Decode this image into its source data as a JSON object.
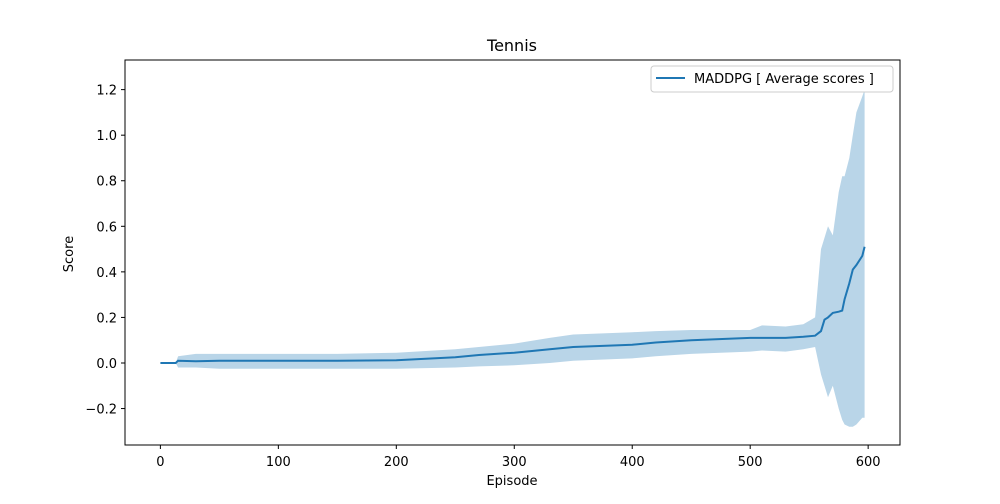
{
  "chart_data": {
    "type": "line",
    "title": "Tennis",
    "xlabel": "Episode",
    "ylabel": "Score",
    "xlim": [
      -30,
      627
    ],
    "ylim": [
      -0.36,
      1.33
    ],
    "xticks": [
      0,
      100,
      200,
      300,
      400,
      500,
      600
    ],
    "xtick_labels": [
      "0",
      "100",
      "200",
      "300",
      "400",
      "500",
      "600"
    ],
    "yticks": [
      -0.2,
      0.0,
      0.2,
      0.4,
      0.6,
      0.8,
      1.0,
      1.2
    ],
    "ytick_labels": [
      "−0.2",
      "0.0",
      "0.2",
      "0.4",
      "0.6",
      "0.8",
      "1.0",
      "1.2"
    ],
    "grid": false,
    "legend_position": "top-right",
    "colors": {
      "line": "#1f77b4",
      "band": "#b9d5e8"
    },
    "series": [
      {
        "name": "MADDPG [ Average scores ]",
        "x": [
          0,
          13,
          15,
          30,
          50,
          100,
          150,
          200,
          250,
          270,
          300,
          330,
          350,
          400,
          420,
          450,
          500,
          510,
          530,
          545,
          555,
          560,
          563,
          566,
          570,
          575,
          578,
          580,
          584,
          587,
          590,
          595,
          597
        ],
        "y": [
          0.0,
          0.0,
          0.01,
          0.008,
          0.01,
          0.01,
          0.01,
          0.012,
          0.025,
          0.035,
          0.045,
          0.06,
          0.07,
          0.08,
          0.09,
          0.1,
          0.11,
          0.11,
          0.11,
          0.115,
          0.12,
          0.14,
          0.19,
          0.2,
          0.22,
          0.225,
          0.23,
          0.28,
          0.35,
          0.41,
          0.43,
          0.47,
          0.51
        ],
        "upper": [
          0.0,
          0.0,
          0.03,
          0.04,
          0.04,
          0.04,
          0.04,
          0.045,
          0.06,
          0.07,
          0.085,
          0.11,
          0.125,
          0.135,
          0.14,
          0.145,
          0.145,
          0.165,
          0.16,
          0.17,
          0.2,
          0.5,
          0.55,
          0.6,
          0.56,
          0.75,
          0.82,
          0.82,
          0.9,
          1.0,
          1.1,
          1.17,
          1.2
        ],
        "lower": [
          0.0,
          0.0,
          -0.02,
          -0.02,
          -0.025,
          -0.025,
          -0.025,
          -0.025,
          -0.02,
          -0.015,
          -0.01,
          0.0,
          0.01,
          0.02,
          0.03,
          0.04,
          0.05,
          0.055,
          0.05,
          0.06,
          0.07,
          -0.05,
          -0.1,
          -0.15,
          -0.1,
          -0.2,
          -0.25,
          -0.27,
          -0.28,
          -0.28,
          -0.27,
          -0.24,
          -0.24
        ]
      }
    ]
  }
}
